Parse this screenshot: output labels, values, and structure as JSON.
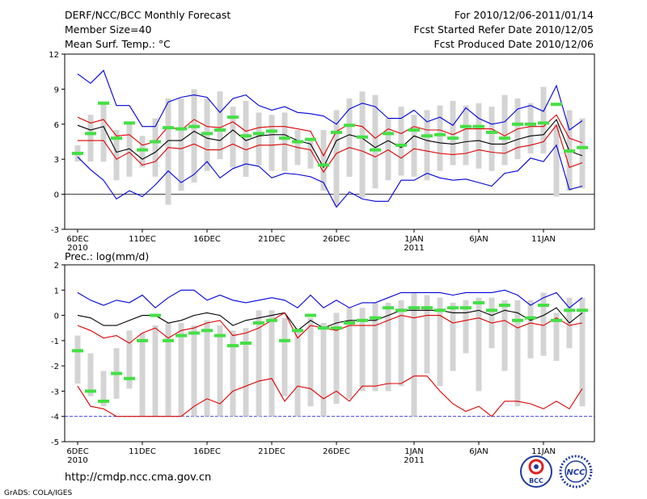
{
  "header": {
    "title": "DERF/NCC/BCC Monthly Forecast",
    "member_size": "Member Size=40",
    "variable_top": "Mean Surf. Temp.: °C",
    "period": "For 2010/12/06-2011/01/14",
    "started": "Fcst Started Refer Date 2010/12/05",
    "produced": "Fcst Produced Date 2010/12/06"
  },
  "footer": {
    "url": "http://cmdp.ncc.cma.gov.cn",
    "credit": "GrADS: COLA/IGES",
    "logo_left": "BCC",
    "logo_right": "NCC"
  },
  "colors": {
    "box": "#d4d4d4",
    "median": "#44e044",
    "mean": "#000000",
    "std": "#dd0000",
    "extreme": "#0000dd",
    "zero": "#000000"
  },
  "chart_data": [
    {
      "type": "box",
      "title": "Mean Surf. Temp.: °C",
      "n_days": 40,
      "x_ticks": [
        {
          "day": 0,
          "label": "6DEC",
          "year": "2010"
        },
        {
          "day": 5,
          "label": "11DEC"
        },
        {
          "day": 10,
          "label": "16DEC"
        },
        {
          "day": 15,
          "label": "21DEC"
        },
        {
          "day": 20,
          "label": "26DEC"
        },
        {
          "day": 26,
          "label": "1JAN",
          "year": "2011"
        },
        {
          "day": 31,
          "label": "6JAN"
        },
        {
          "day": 36,
          "label": "11JAN"
        }
      ],
      "ylim": [
        -3,
        12
      ],
      "yticks": [
        -3,
        0,
        3,
        6,
        9,
        12
      ],
      "box_low": [
        2.8,
        2.8,
        2.8,
        1.2,
        1.5,
        2.3,
        1.5,
        -0.9,
        0.3,
        1.0,
        2.0,
        3.0,
        2.3,
        1.5,
        2.5,
        2.0,
        2.0,
        2.5,
        2.2,
        0.3,
        -1.0,
        1.5,
        -0.3,
        0.5,
        1.2,
        1.6,
        1.5,
        1.2,
        2.0,
        2.5,
        2.5,
        2.2,
        2.0,
        2.5,
        3.0,
        3.5,
        3.5,
        -0.2,
        0.3,
        0.5
      ],
      "box_high": [
        4.2,
        6.8,
        7.8,
        5.5,
        6.0,
        5.0,
        6.5,
        8.2,
        8.2,
        9.0,
        8.2,
        8.8,
        7.5,
        8.0,
        7.0,
        6.8,
        7.0,
        5.5,
        4.6,
        5.5,
        7.2,
        8.2,
        8.8,
        8.5,
        6.5,
        7.5,
        6.8,
        7.2,
        7.6,
        8.0,
        7.6,
        7.8,
        7.5,
        8.5,
        8.2,
        7.8,
        9.2,
        6.0,
        7.2,
        6.5
      ],
      "median": [
        3.5,
        5.2,
        7.8,
        4.8,
        6.1,
        3.8,
        4.5,
        5.7,
        5.6,
        5.8,
        5.2,
        5.5,
        6.6,
        5.0,
        5.2,
        5.4,
        4.8,
        4.5,
        4.7,
        2.5,
        5.3,
        5.9,
        4.9,
        3.8,
        5.2,
        4.2,
        5.5,
        5.0,
        5.1,
        4.8,
        5.8,
        5.8,
        5.3,
        4.8,
        6.0,
        6.0,
        6.1,
        7.7,
        3.7,
        4.0
      ],
      "series": [
        {
          "name": "max",
          "color": "#0000dd",
          "values": [
            10.3,
            9.5,
            10.6,
            7.6,
            7.6,
            5.8,
            5.8,
            7.9,
            8.3,
            8.5,
            8.3,
            7.0,
            8.2,
            8.5,
            7.6,
            7.2,
            7.5,
            7.0,
            6.9,
            6.7,
            6.0,
            7.3,
            7.8,
            7.5,
            6.5,
            6.5,
            7.2,
            6.2,
            6.6,
            5.9,
            7.4,
            6.5,
            6.0,
            6.2,
            7.3,
            7.6,
            7.1,
            9.3,
            5.5,
            6.3
          ]
        },
        {
          "name": "mean_plus_std",
          "color": "#dd0000",
          "values": [
            6.6,
            6.1,
            6.4,
            5.0,
            5.1,
            4.2,
            4.5,
            5.8,
            5.5,
            6.4,
            5.8,
            5.7,
            6.2,
            5.4,
            5.7,
            5.8,
            5.8,
            5.6,
            5.4,
            3.3,
            5.4,
            6.0,
            5.8,
            4.8,
            5.6,
            5.2,
            5.8,
            5.5,
            5.5,
            5.1,
            5.6,
            5.6,
            5.6,
            5.0,
            5.6,
            5.8,
            5.8,
            6.8,
            4.8,
            4.4
          ]
        },
        {
          "name": "mean",
          "color": "#000000",
          "values": [
            5.9,
            5.5,
            5.8,
            3.6,
            3.9,
            3.0,
            3.6,
            4.6,
            4.6,
            5.4,
            4.8,
            4.6,
            5.5,
            4.6,
            5.0,
            5.1,
            5.1,
            4.6,
            4.3,
            2.3,
            4.6,
            5.1,
            4.8,
            4.0,
            4.6,
            4.0,
            5.0,
            4.6,
            4.4,
            4.3,
            4.5,
            4.6,
            4.3,
            4.3,
            4.7,
            5.0,
            5.1,
            6.4,
            3.7,
            3.3
          ]
        },
        {
          "name": "mean_minus_std",
          "color": "#dd0000",
          "values": [
            4.6,
            4.6,
            4.6,
            3.0,
            3.6,
            2.5,
            2.8,
            4.0,
            3.9,
            4.3,
            3.8,
            3.8,
            4.3,
            3.8,
            4.2,
            4.2,
            4.3,
            4.0,
            3.8,
            1.9,
            3.5,
            4.0,
            3.7,
            3.2,
            3.8,
            3.1,
            3.9,
            3.7,
            3.5,
            3.4,
            3.5,
            3.8,
            3.6,
            3.5,
            4.0,
            4.2,
            4.5,
            5.9,
            2.3,
            2.7
          ]
        },
        {
          "name": "min",
          "color": "#0000dd",
          "values": [
            3.2,
            2.1,
            1.2,
            -0.4,
            0.3,
            -0.2,
            0.8,
            2.0,
            1.0,
            1.7,
            2.8,
            1.4,
            2.2,
            2.6,
            2.4,
            1.4,
            1.8,
            1.7,
            1.5,
            1.0,
            -1.1,
            0.2,
            -0.4,
            -0.6,
            -0.6,
            1.2,
            1.2,
            1.8,
            1.4,
            1.2,
            1.3,
            1.0,
            0.7,
            1.8,
            2.0,
            3.1,
            2.8,
            4.2,
            0.4,
            0.7
          ]
        }
      ]
    },
    {
      "type": "box",
      "title": "Prec.: log(mm/d)",
      "n_days": 40,
      "x_ticks": [
        {
          "day": 0,
          "label": "6DEC",
          "year": "2010"
        },
        {
          "day": 5,
          "label": "11DEC"
        },
        {
          "day": 10,
          "label": "16DEC"
        },
        {
          "day": 15,
          "label": "21DEC"
        },
        {
          "day": 20,
          "label": "26DEC"
        },
        {
          "day": 26,
          "label": "1JAN",
          "year": "2011"
        },
        {
          "day": 31,
          "label": "6JAN"
        },
        {
          "day": 36,
          "label": "11JAN"
        }
      ],
      "ylim": [
        -5,
        2
      ],
      "yticks": [
        -5,
        -4,
        -3,
        -2,
        -1,
        0,
        1,
        2
      ],
      "box_low": [
        -2.7,
        -3.2,
        -3.6,
        -3.3,
        -2.9,
        -4.0,
        -4.0,
        -4.0,
        -4.0,
        -4.0,
        -4.0,
        -4.0,
        -4.0,
        -4.0,
        -4.0,
        -4.0,
        -3.2,
        -4.0,
        -3.6,
        -4.0,
        -3.5,
        -3.3,
        -3.0,
        -3.0,
        -3.0,
        -2.8,
        -4.0,
        -2.3,
        -2.8,
        -2.2,
        -1.5,
        -3.0,
        -1.3,
        -2.2,
        -3.6,
        -1.7,
        -1.6,
        -1.8,
        -1.3,
        -3.6
      ],
      "box_high": [
        -0.8,
        -1.5,
        -2.2,
        -1.3,
        -0.6,
        -0.7,
        -0.4,
        -0.3,
        -0.3,
        -0.4,
        -0.2,
        -0.4,
        -0.6,
        -0.5,
        0.2,
        0.2,
        -0.1,
        -0.5,
        -0.1,
        -0.3,
        0.1,
        0.3,
        0.3,
        0.5,
        0.5,
        0.6,
        0.9,
        0.8,
        0.7,
        0.5,
        0.6,
        0.7,
        0.7,
        0.6,
        0.6,
        0.6,
        0.9,
        0.1,
        0.7,
        0.7
      ],
      "median": [
        -1.4,
        -3.0,
        -3.4,
        -2.3,
        -2.5,
        -1.0,
        0.0,
        -1.0,
        -0.8,
        -0.7,
        -0.6,
        -0.8,
        -1.2,
        -1.1,
        -0.3,
        -0.2,
        -1.0,
        -0.6,
        0.0,
        -0.5,
        -0.5,
        -0.3,
        -0.2,
        -0.1,
        0.3,
        0.2,
        0.3,
        0.3,
        0.2,
        0.3,
        0.3,
        0.5,
        0.2,
        0.4,
        -0.2,
        -0.1,
        0.4,
        -0.2,
        0.2,
        0.2
      ],
      "series": [
        {
          "name": "max",
          "color": "#0000dd",
          "values": [
            0.9,
            0.6,
            0.4,
            0.6,
            0.5,
            0.8,
            0.3,
            0.7,
            1.0,
            1.0,
            0.6,
            0.8,
            0.6,
            0.5,
            0.6,
            0.7,
            0.6,
            0.3,
            0.8,
            0.3,
            0.6,
            0.3,
            0.5,
            0.5,
            0.7,
            0.9,
            0.9,
            0.9,
            0.9,
            0.8,
            0.9,
            0.9,
            0.9,
            1.0,
            0.8,
            0.4,
            0.7,
            0.9,
            0.3,
            0.7
          ]
        },
        {
          "name": "mean_plus_std",
          "color": "#000000",
          "values": [
            0.0,
            -0.1,
            -0.4,
            -0.4,
            -0.2,
            0.0,
            0.0,
            -0.3,
            -0.2,
            0.0,
            0.1,
            0.0,
            -0.4,
            -0.2,
            -0.1,
            0.0,
            0.1,
            -0.6,
            -0.2,
            -0.5,
            -0.3,
            -0.2,
            -0.2,
            -0.2,
            0.0,
            0.2,
            0.2,
            0.2,
            0.2,
            0.1,
            0.1,
            0.2,
            0.0,
            0.2,
            0.1,
            -0.2,
            0.0,
            0.3,
            -0.3,
            0.1
          ]
        },
        {
          "name": "mean",
          "color": "#dd0000",
          "values": [
            -0.4,
            -0.6,
            -0.9,
            -0.8,
            -1.1,
            -0.7,
            -0.5,
            -0.9,
            -0.6,
            -0.5,
            -0.3,
            -0.2,
            -0.8,
            -0.7,
            -0.5,
            -0.2,
            0.1,
            -0.9,
            -0.4,
            -0.5,
            -0.6,
            -0.4,
            -0.4,
            -0.4,
            -0.2,
            0.0,
            -0.1,
            0.0,
            0.0,
            -0.3,
            -0.2,
            -0.1,
            -0.3,
            -0.2,
            -0.5,
            -0.3,
            -0.4,
            -0.1,
            -0.4,
            -0.3
          ]
        },
        {
          "name": "mean_minus_std",
          "color": "#dd0000",
          "values": [
            -2.8,
            -3.6,
            -3.7,
            -4.0,
            -4.0,
            -4.0,
            -4.0,
            -4.0,
            -4.0,
            -3.6,
            -3.3,
            -3.5,
            -3.0,
            -2.8,
            -2.6,
            -2.5,
            -3.4,
            -2.8,
            -2.9,
            -3.3,
            -3.0,
            -3.4,
            -2.8,
            -2.8,
            -2.7,
            -2.7,
            -2.4,
            -2.4,
            -3.0,
            -3.5,
            -3.8,
            -3.6,
            -4.0,
            -3.4,
            -3.4,
            -3.5,
            -3.7,
            -3.4,
            -3.7,
            -2.9
          ]
        },
        {
          "name": "min",
          "color": "#0000dd",
          "values": [
            -4.0,
            -4.0,
            -4.0,
            -4.0,
            -4.0,
            -4.0,
            -4.0,
            -4.0,
            -4.0,
            -4.0,
            -4.0,
            -4.0,
            -4.0,
            -4.0,
            -4.0,
            -4.0,
            -4.0,
            -4.0,
            -4.0,
            -4.0,
            -4.0,
            -4.0,
            -4.0,
            -4.0,
            -4.0,
            -4.0,
            -4.0,
            -4.0,
            -4.0,
            -4.0,
            -4.0,
            -4.0,
            -4.0,
            -4.0,
            -4.0,
            -4.0,
            -4.0,
            -4.0,
            -4.0,
            -4.0
          ]
        }
      ]
    }
  ]
}
